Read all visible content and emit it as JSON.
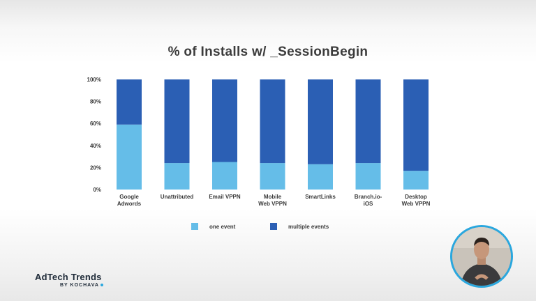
{
  "colors": {
    "one_event": "#65bde8",
    "multiple_events": "#2b5fb4",
    "accent": "#2aa7de"
  },
  "chart_data": {
    "type": "bar",
    "stacked": true,
    "title": "% of Installs w/ _SessionBegin",
    "categories": [
      [
        "Google",
        "Adwords"
      ],
      [
        "Unattributed"
      ],
      [
        "Email VPPN"
      ],
      [
        "Mobile",
        "Web VPPN"
      ],
      [
        "SmartLinks"
      ],
      [
        "Branch.io-",
        "iOS"
      ],
      [
        "Desktop",
        "Web VPPN"
      ]
    ],
    "series": [
      {
        "name": "one event",
        "values": [
          59,
          24,
          25,
          24,
          23,
          24,
          17
        ]
      },
      {
        "name": "multiple events",
        "values": [
          41,
          76,
          75,
          76,
          77,
          76,
          83
        ]
      }
    ],
    "yticks": [
      "0%",
      "20%",
      "40%",
      "60%",
      "80%",
      "100%"
    ],
    "ylim": [
      0,
      100
    ],
    "grid": false,
    "legend_position": "bottom"
  },
  "legend": [
    {
      "label": "one event",
      "color_key": "one_event"
    },
    {
      "label": "multiple events",
      "color_key": "multiple_events"
    }
  ],
  "brand": {
    "name": "AdTech Trends",
    "by": "BY KOCHAVA"
  },
  "presenter": {
    "icon": "presenter-avatar"
  }
}
